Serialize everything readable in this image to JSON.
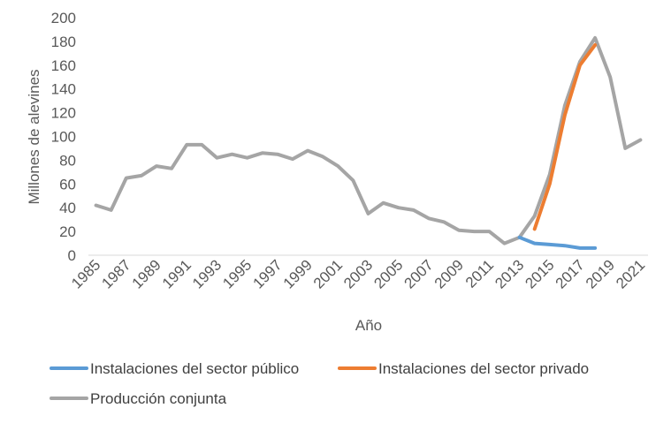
{
  "chart_data": {
    "type": "line",
    "title": "",
    "xlabel": "Año",
    "ylabel": "Millones de alevines",
    "ylim": [
      0,
      200
    ],
    "y_ticks": [
      0,
      20,
      40,
      60,
      80,
      100,
      120,
      140,
      160,
      180,
      200
    ],
    "x_tick_labels": [
      "1985",
      "1987",
      "1989",
      "1991",
      "1993",
      "1995",
      "1997",
      "1999",
      "2001",
      "2003",
      "2005",
      "2007",
      "2009",
      "2011",
      "2013",
      "2015",
      "2017",
      "2019",
      "2021"
    ],
    "grid": false,
    "legend_position": "bottom",
    "series": [
      {
        "name": "Instalaciones del sector público",
        "color": "#5B9BD5",
        "x": [
          2013,
          2014,
          2015,
          2016,
          2017,
          2018
        ],
        "y": [
          15,
          10,
          9,
          8,
          6,
          6
        ]
      },
      {
        "name": "Instalaciones del sector privado",
        "color": "#ED7D31",
        "x": [
          2014,
          2015,
          2016,
          2017,
          2018
        ],
        "y": [
          22,
          60,
          118,
          160,
          177
        ]
      },
      {
        "name": "Producción conjunta",
        "color": "#A5A5A5",
        "x": [
          1985,
          1986,
          1987,
          1988,
          1989,
          1990,
          1991,
          1992,
          1993,
          1994,
          1995,
          1996,
          1997,
          1998,
          1999,
          2000,
          2001,
          2002,
          2003,
          2004,
          2005,
          2006,
          2007,
          2008,
          2009,
          2010,
          2011,
          2012,
          2013,
          2014,
          2015,
          2016,
          2017,
          2018,
          2019,
          2020,
          2021
        ],
        "y": [
          42,
          38,
          65,
          67,
          75,
          73,
          93,
          93,
          82,
          85,
          82,
          86,
          85,
          81,
          88,
          83,
          75,
          63,
          35,
          44,
          40,
          38,
          31,
          28,
          21,
          20,
          20,
          10,
          15,
          33,
          68,
          126,
          163,
          183,
          150,
          90,
          97
        ]
      }
    ]
  }
}
